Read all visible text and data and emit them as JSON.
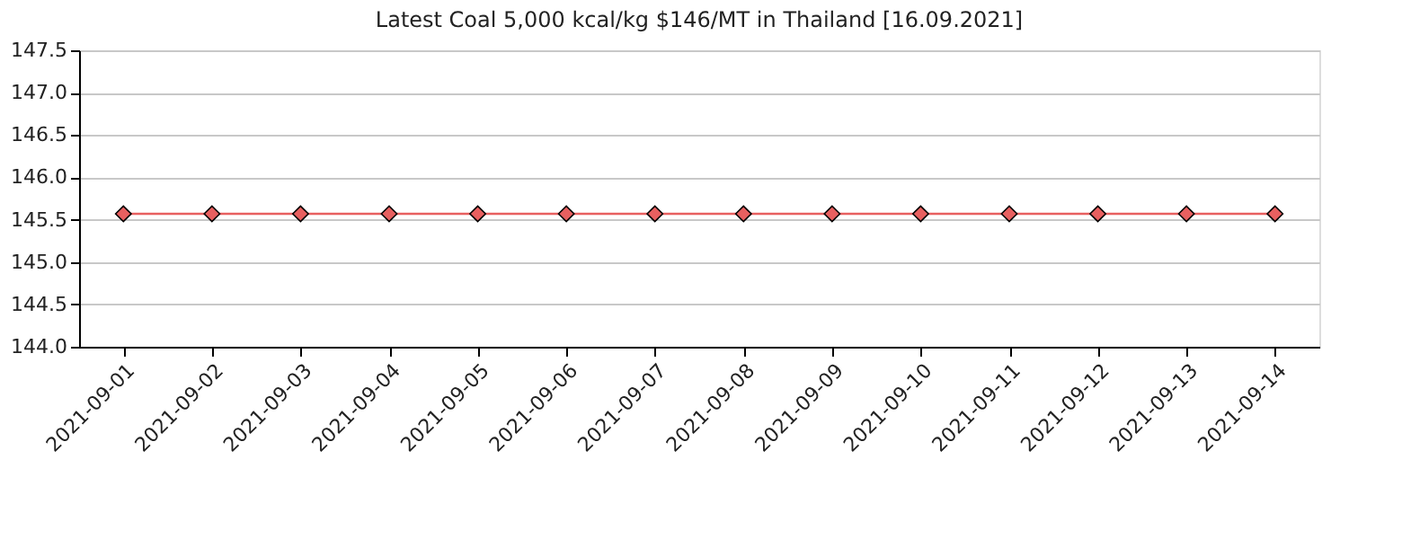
{
  "chart_data": {
    "type": "line",
    "title": "Latest Coal 5,000 kcal/kg $146/MT in Thailand [16.09.2021]",
    "categories": [
      "2021-09-01",
      "2021-09-02",
      "2021-09-03",
      "2021-09-04",
      "2021-09-05",
      "2021-09-06",
      "2021-09-07",
      "2021-09-08",
      "2021-09-09",
      "2021-09-10",
      "2021-09-11",
      "2021-09-12",
      "2021-09-13",
      "2021-09-14"
    ],
    "series": [
      {
        "color": "#e86060",
        "values": [
          145.57,
          145.57,
          145.57,
          145.57,
          145.57,
          145.57,
          145.57,
          145.57,
          145.57,
          145.57,
          145.57,
          145.57,
          145.57,
          145.57
        ]
      }
    ],
    "ylim": [
      144.0,
      147.5
    ],
    "yticks": [
      {
        "value": 144.0,
        "label": "144.0"
      },
      {
        "value": 144.5,
        "label": "144.5"
      },
      {
        "value": 145.0,
        "label": "145.0"
      },
      {
        "value": 145.5,
        "label": "145.5"
      },
      {
        "value": 146.0,
        "label": "146.0"
      },
      {
        "value": 146.5,
        "label": "146.5"
      },
      {
        "value": 147.0,
        "label": "147.0"
      },
      {
        "value": 147.5,
        "label": "147.5"
      }
    ],
    "grid": "y",
    "marker": "diamond"
  }
}
